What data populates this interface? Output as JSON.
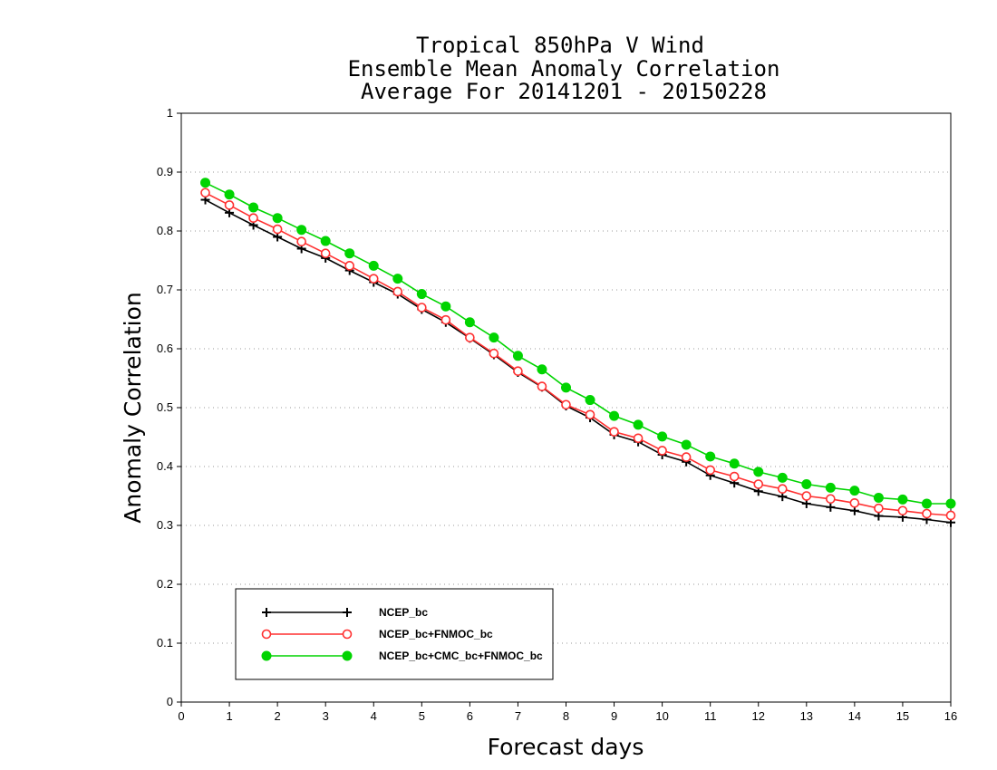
{
  "chart_data": {
    "type": "line",
    "title": [
      "Tropical 850hPa V Wind",
      "Ensemble Mean Anomaly Correlation",
      "Average For 20141201 - 20150228"
    ],
    "xlabel": "Forecast days",
    "ylabel": "Anomaly Correlation",
    "xlim": [
      0,
      16
    ],
    "ylim": [
      0,
      1
    ],
    "xticks": [
      "0",
      "1",
      "2",
      "3",
      "4",
      "5",
      "6",
      "7",
      "8",
      "9",
      "10",
      "11",
      "12",
      "13",
      "14",
      "15",
      "16"
    ],
    "yticks": [
      "0",
      "0.1",
      "0.2",
      "0.3",
      "0.4",
      "0.5",
      "0.6",
      "0.7",
      "0.8",
      "0.9",
      "1"
    ],
    "grid": "horizontal dotted",
    "legend_position": "bottom-left",
    "x": [
      0.5,
      1,
      1.5,
      2,
      2.5,
      3,
      3.5,
      4,
      4.5,
      5,
      5.5,
      6,
      6.5,
      7,
      7.5,
      8,
      8.5,
      9,
      9.5,
      10,
      10.5,
      11,
      11.5,
      12,
      12.5,
      13,
      13.5,
      14,
      14.5,
      15,
      15.5,
      16
    ],
    "series": [
      {
        "name": "NCEP_bc",
        "color": "#000000",
        "marker": "plus",
        "values": [
          0.853,
          0.831,
          0.81,
          0.79,
          0.77,
          0.754,
          0.733,
          0.713,
          0.693,
          0.667,
          0.645,
          0.618,
          0.59,
          0.56,
          0.535,
          0.503,
          0.483,
          0.454,
          0.442,
          0.42,
          0.408,
          0.385,
          0.372,
          0.358,
          0.349,
          0.337,
          0.331,
          0.325,
          0.316,
          0.314,
          0.31,
          0.305
        ]
      },
      {
        "name": "NCEP_bc+FNMOC_bc",
        "color": "#ff3030",
        "marker": "open-circle",
        "values": [
          0.865,
          0.844,
          0.822,
          0.803,
          0.782,
          0.762,
          0.741,
          0.719,
          0.697,
          0.67,
          0.649,
          0.619,
          0.592,
          0.562,
          0.536,
          0.505,
          0.488,
          0.459,
          0.448,
          0.427,
          0.416,
          0.394,
          0.383,
          0.37,
          0.362,
          0.35,
          0.345,
          0.338,
          0.329,
          0.325,
          0.32,
          0.317
        ]
      },
      {
        "name": "NCEP_bc+CMC_bc+FNMOC_bc",
        "color": "#00d400",
        "marker": "filled-circle",
        "values": [
          0.882,
          0.862,
          0.84,
          0.822,
          0.802,
          0.783,
          0.762,
          0.741,
          0.719,
          0.693,
          0.672,
          0.645,
          0.619,
          0.588,
          0.565,
          0.534,
          0.513,
          0.486,
          0.471,
          0.451,
          0.437,
          0.417,
          0.405,
          0.391,
          0.381,
          0.37,
          0.364,
          0.359,
          0.347,
          0.344,
          0.337,
          0.337
        ]
      }
    ]
  }
}
